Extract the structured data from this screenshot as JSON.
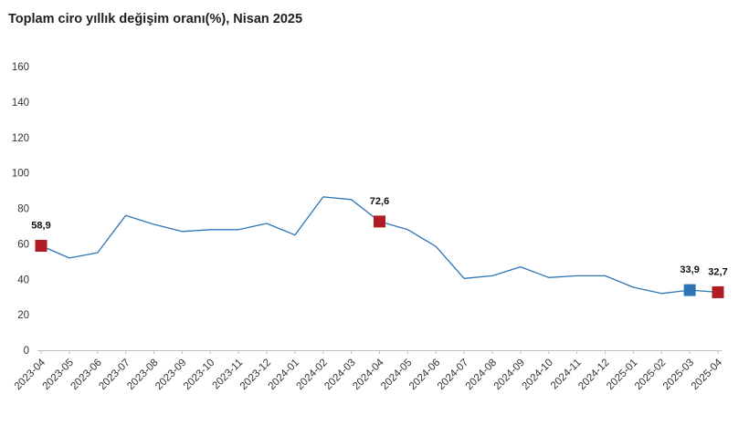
{
  "title": "Toplam ciro yıllık değişim oranı(%), Nisan 2025",
  "chart_data": {
    "type": "line",
    "title": "Toplam ciro yıllık değişim oranı(%), Nisan 2025",
    "xlabel": "",
    "ylabel": "",
    "ylim": [
      0,
      160
    ],
    "yticks": [
      0,
      20,
      40,
      60,
      80,
      100,
      120,
      140,
      160
    ],
    "grid": false,
    "legend": "none",
    "categories": [
      "2023-04",
      "2023-05",
      "2023-06",
      "2023-07",
      "2023-08",
      "2023-09",
      "2023-10",
      "2023-11",
      "2023-12",
      "2024-01",
      "2024-02",
      "2024-03",
      "2024-04",
      "2024-05",
      "2024-06",
      "2024-07",
      "2024-08",
      "2024-09",
      "2024-10",
      "2024-11",
      "2024-12",
      "2025-01",
      "2025-02",
      "2025-03",
      "2025-04"
    ],
    "series": [
      {
        "values": [
          58.9,
          52.0,
          55.0,
          76.0,
          71.0,
          67.0,
          68.0,
          68.0,
          71.5,
          65.0,
          86.5,
          85.0,
          72.6,
          68.0,
          58.5,
          40.5,
          42.0,
          47.0,
          41.0,
          42.0,
          42.0,
          35.5,
          32.0,
          33.9,
          32.7
        ],
        "color": "#2e75b6"
      }
    ],
    "highlighted_points": [
      {
        "category": "2023-04",
        "value": 58.9,
        "label": "58,9",
        "color": "#b01c22"
      },
      {
        "category": "2024-04",
        "value": 72.6,
        "label": "72,6",
        "color": "#b01c22"
      },
      {
        "category": "2025-03",
        "value": 33.9,
        "label": "33,9",
        "color": "#2e75b6"
      },
      {
        "category": "2025-04",
        "value": 32.7,
        "label": "32,7",
        "color": "#b01c22"
      }
    ]
  }
}
